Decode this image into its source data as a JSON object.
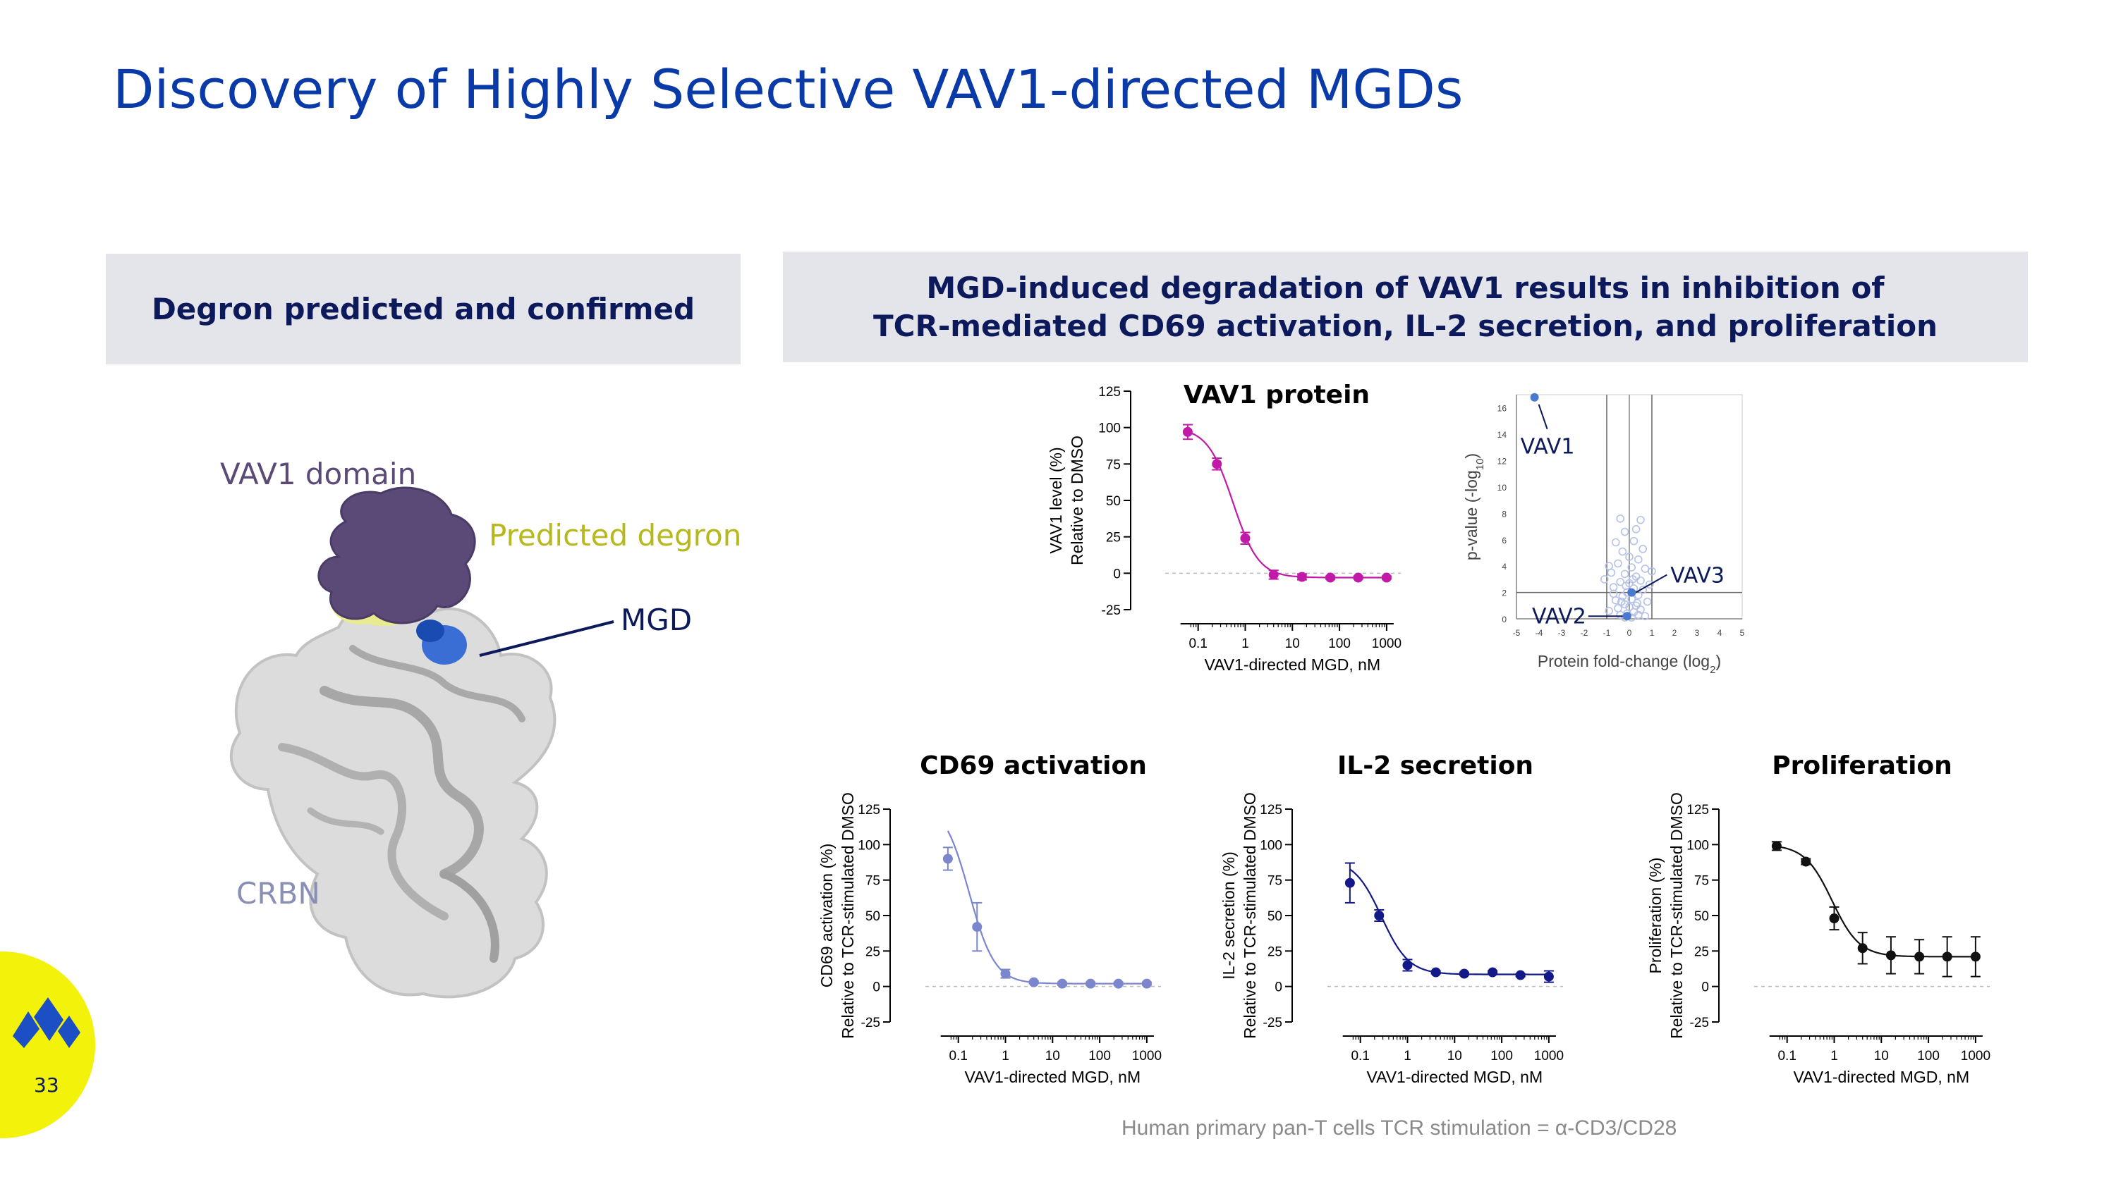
{
  "title": "Discovery of Highly Selective VAV1-directed MGDs",
  "left_header": "Degron predicted and confirmed",
  "right_header": {
    "line1": "MGD-induced degradation of VAV1 results in inhibition of",
    "line2": "TCR-mediated CD69 activation, IL-2 secretion, and proliferation"
  },
  "structure": {
    "vav1_domain": "VAV1 domain",
    "predicted_degron": "Predicted degron",
    "mgd": "MGD",
    "crbn": "CRBN"
  },
  "colors": {
    "title": "#0a3aa8",
    "header_bg": "#e4e5ea",
    "header_text": "#0c1a5c",
    "vav1_domain": "#5b4a78",
    "predicted_degron": "#b7b81c",
    "mgd": "#0c1a5c",
    "crbn": "#8a8fb5",
    "logo_bg": "#f2f20a",
    "logo_mark": "#1d4fc4"
  },
  "footnote": "Human primary pan-T cells TCR stimulation = α-CD3/CD28",
  "page_number": "33",
  "chart_data": [
    {
      "id": "vav1",
      "type": "line",
      "title": "VAV1 protein",
      "xlabel": "VAV1-directed MGD, nM",
      "ylabel": [
        "VAV1 level (%)",
        "Relative to DMSO"
      ],
      "xscale": "log",
      "xlim": [
        0.02,
        2000
      ],
      "ylim": [
        -25,
        125
      ],
      "yticks": [
        -25,
        0,
        25,
        50,
        75,
        100,
        125
      ],
      "xticks": [
        0.1,
        1,
        10,
        100,
        1000
      ],
      "xtick_labels": [
        "0.1",
        "1",
        "10",
        "100",
        "1000"
      ],
      "color": "#c21aa8",
      "x": [
        0.06,
        0.25,
        1,
        4,
        16,
        64,
        250,
        1000
      ],
      "y": [
        97,
        75,
        24,
        -1,
        -2.5,
        -3,
        -3,
        -3
      ],
      "err": [
        5,
        4,
        4,
        3,
        2,
        1,
        1,
        1
      ],
      "fit": {
        "top": 100,
        "bottom": -3,
        "ic50": 0.55,
        "hill": 1.6
      }
    },
    {
      "id": "volcano",
      "type": "scatter",
      "xlabel": "Protein fold-change (log2)",
      "ylabel": "p-value (-log10)",
      "xlim": [
        -5,
        5
      ],
      "ylim": [
        0,
        17
      ],
      "xticks": [
        -5,
        -4,
        -3,
        -2,
        -1,
        0,
        1,
        2,
        3,
        4,
        5
      ],
      "yticks": [
        0,
        2,
        4,
        6,
        8,
        10,
        12,
        14,
        16
      ],
      "threshold_x": [
        -1,
        1
      ],
      "threshold_y": 2,
      "color": "#b5c2e8",
      "highlight_color": "#4a78cc",
      "annotations": [
        {
          "label": "VAV1",
          "x": -4.2,
          "y": 16.8
        },
        {
          "label": "VAV3",
          "x": 0.1,
          "y": 2.0
        },
        {
          "label": "VAV2",
          "x": -0.1,
          "y": 0.2
        }
      ],
      "points": [
        [
          -0.4,
          7.6
        ],
        [
          -0.2,
          6.6
        ],
        [
          0.3,
          6.8
        ],
        [
          0.5,
          7.5
        ],
        [
          -0.6,
          5.8
        ],
        [
          0.2,
          5.9
        ],
        [
          0.6,
          5.3
        ],
        [
          -0.3,
          5.1
        ],
        [
          0.0,
          4.7
        ],
        [
          0.4,
          4.5
        ],
        [
          -0.5,
          4.2
        ],
        [
          0.1,
          3.9
        ],
        [
          0.7,
          3.8
        ],
        [
          -0.8,
          3.5
        ],
        [
          -0.2,
          3.4
        ],
        [
          0.3,
          3.2
        ],
        [
          0.5,
          2.9
        ],
        [
          -0.4,
          2.8
        ],
        [
          0.0,
          2.7
        ],
        [
          -0.7,
          2.4
        ],
        [
          0.2,
          2.3
        ],
        [
          0.6,
          2.2
        ],
        [
          -0.1,
          2.0
        ],
        [
          0.4,
          1.8
        ],
        [
          -0.3,
          1.7
        ],
        [
          0.1,
          1.5
        ],
        [
          -0.6,
          1.4
        ],
        [
          0.8,
          1.3
        ],
        [
          -0.2,
          1.1
        ],
        [
          0.3,
          1.0
        ],
        [
          0.0,
          0.9
        ],
        [
          -0.5,
          0.8
        ],
        [
          0.5,
          0.7
        ],
        [
          -0.9,
          0.6
        ],
        [
          0.2,
          0.5
        ],
        [
          -0.1,
          0.4
        ],
        [
          0.4,
          0.3
        ],
        [
          -0.4,
          0.3
        ],
        [
          0.7,
          0.2
        ],
        [
          -0.2,
          0.1
        ],
        [
          0.1,
          0.1
        ],
        [
          -0.7,
          1.9
        ],
        [
          0.9,
          2.6
        ],
        [
          -1.1,
          3.0
        ],
        [
          1.0,
          3.6
        ],
        [
          -0.9,
          4.0
        ],
        [
          0.15,
          3.0
        ],
        [
          -0.15,
          2.5
        ],
        [
          0.35,
          1.2
        ],
        [
          -0.35,
          1.3
        ]
      ],
      "highlights": [
        [
          -4.2,
          16.8
        ],
        [
          0.1,
          2.0
        ],
        [
          -0.1,
          0.2
        ]
      ]
    },
    {
      "id": "cd69",
      "type": "line",
      "title": "CD69 activation",
      "xlabel": "VAV1-directed MGD, nM",
      "ylabel": [
        "CD69 activation (%)",
        "Relative to TCR-stimulated DMSO"
      ],
      "xscale": "log",
      "xlim": [
        0.02,
        2000
      ],
      "ylim": [
        -25,
        125
      ],
      "yticks": [
        -25,
        0,
        25,
        50,
        75,
        100,
        125
      ],
      "xticks": [
        0.1,
        1,
        10,
        100,
        1000
      ],
      "xtick_labels": [
        "0.1",
        "1",
        "10",
        "100",
        "1000"
      ],
      "color": "#7b86cc",
      "x": [
        0.06,
        0.25,
        1,
        4,
        16,
        64,
        250,
        1000
      ],
      "y": [
        90,
        42,
        9,
        3,
        2,
        2,
        2,
        2
      ],
      "err": [
        8,
        17,
        3,
        1,
        1,
        1,
        1,
        1
      ],
      "fit": {
        "top": 130,
        "bottom": 2,
        "ic50": 0.17,
        "hill": 1.6
      }
    },
    {
      "id": "il2",
      "type": "line",
      "title": "IL-2 secretion",
      "xlabel": "VAV1-directed MGD, nM",
      "ylabel": [
        "IL-2 secretion (%)",
        "Relative to TCR-stimulated DMSO"
      ],
      "xscale": "log",
      "xlim": [
        0.02,
        2000
      ],
      "ylim": [
        -25,
        125
      ],
      "yticks": [
        -25,
        0,
        25,
        50,
        75,
        100,
        125
      ],
      "xticks": [
        0.1,
        1,
        10,
        100,
        1000
      ],
      "xtick_labels": [
        "0.1",
        "1",
        "10",
        "100",
        "1000"
      ],
      "color": "#14198a",
      "x": [
        0.06,
        0.25,
        1,
        4,
        16,
        64,
        250,
        1000
      ],
      "y": [
        73,
        50,
        15,
        10,
        9,
        10,
        8,
        7
      ],
      "err": [
        14,
        4,
        4,
        1,
        1,
        1,
        1,
        4
      ],
      "fit": {
        "top": 90,
        "bottom": 8.5,
        "ic50": 0.28,
        "hill": 1.5
      }
    },
    {
      "id": "prolif",
      "type": "line",
      "title": "Proliferation",
      "xlabel": "VAV1-directed MGD, nM",
      "ylabel": [
        "Proliferation (%)",
        "Relative to TCR-stimulated DMSO"
      ],
      "xscale": "log",
      "xlim": [
        0.02,
        2000
      ],
      "ylim": [
        -25,
        125
      ],
      "yticks": [
        -25,
        0,
        25,
        50,
        75,
        100,
        125
      ],
      "xticks": [
        0.1,
        1,
        10,
        100,
        1000
      ],
      "xtick_labels": [
        "0.1",
        "1",
        "10",
        "100",
        "1000"
      ],
      "color": "#111111",
      "x": [
        0.06,
        0.25,
        1,
        4,
        16,
        64,
        250,
        1000
      ],
      "y": [
        99,
        88,
        48,
        27,
        22,
        21,
        21,
        21
      ],
      "err": [
        3,
        2,
        8,
        11,
        13,
        12,
        14,
        14
      ],
      "fit": {
        "top": 100,
        "bottom": 21,
        "ic50": 0.9,
        "hill": 1.5
      }
    }
  ]
}
